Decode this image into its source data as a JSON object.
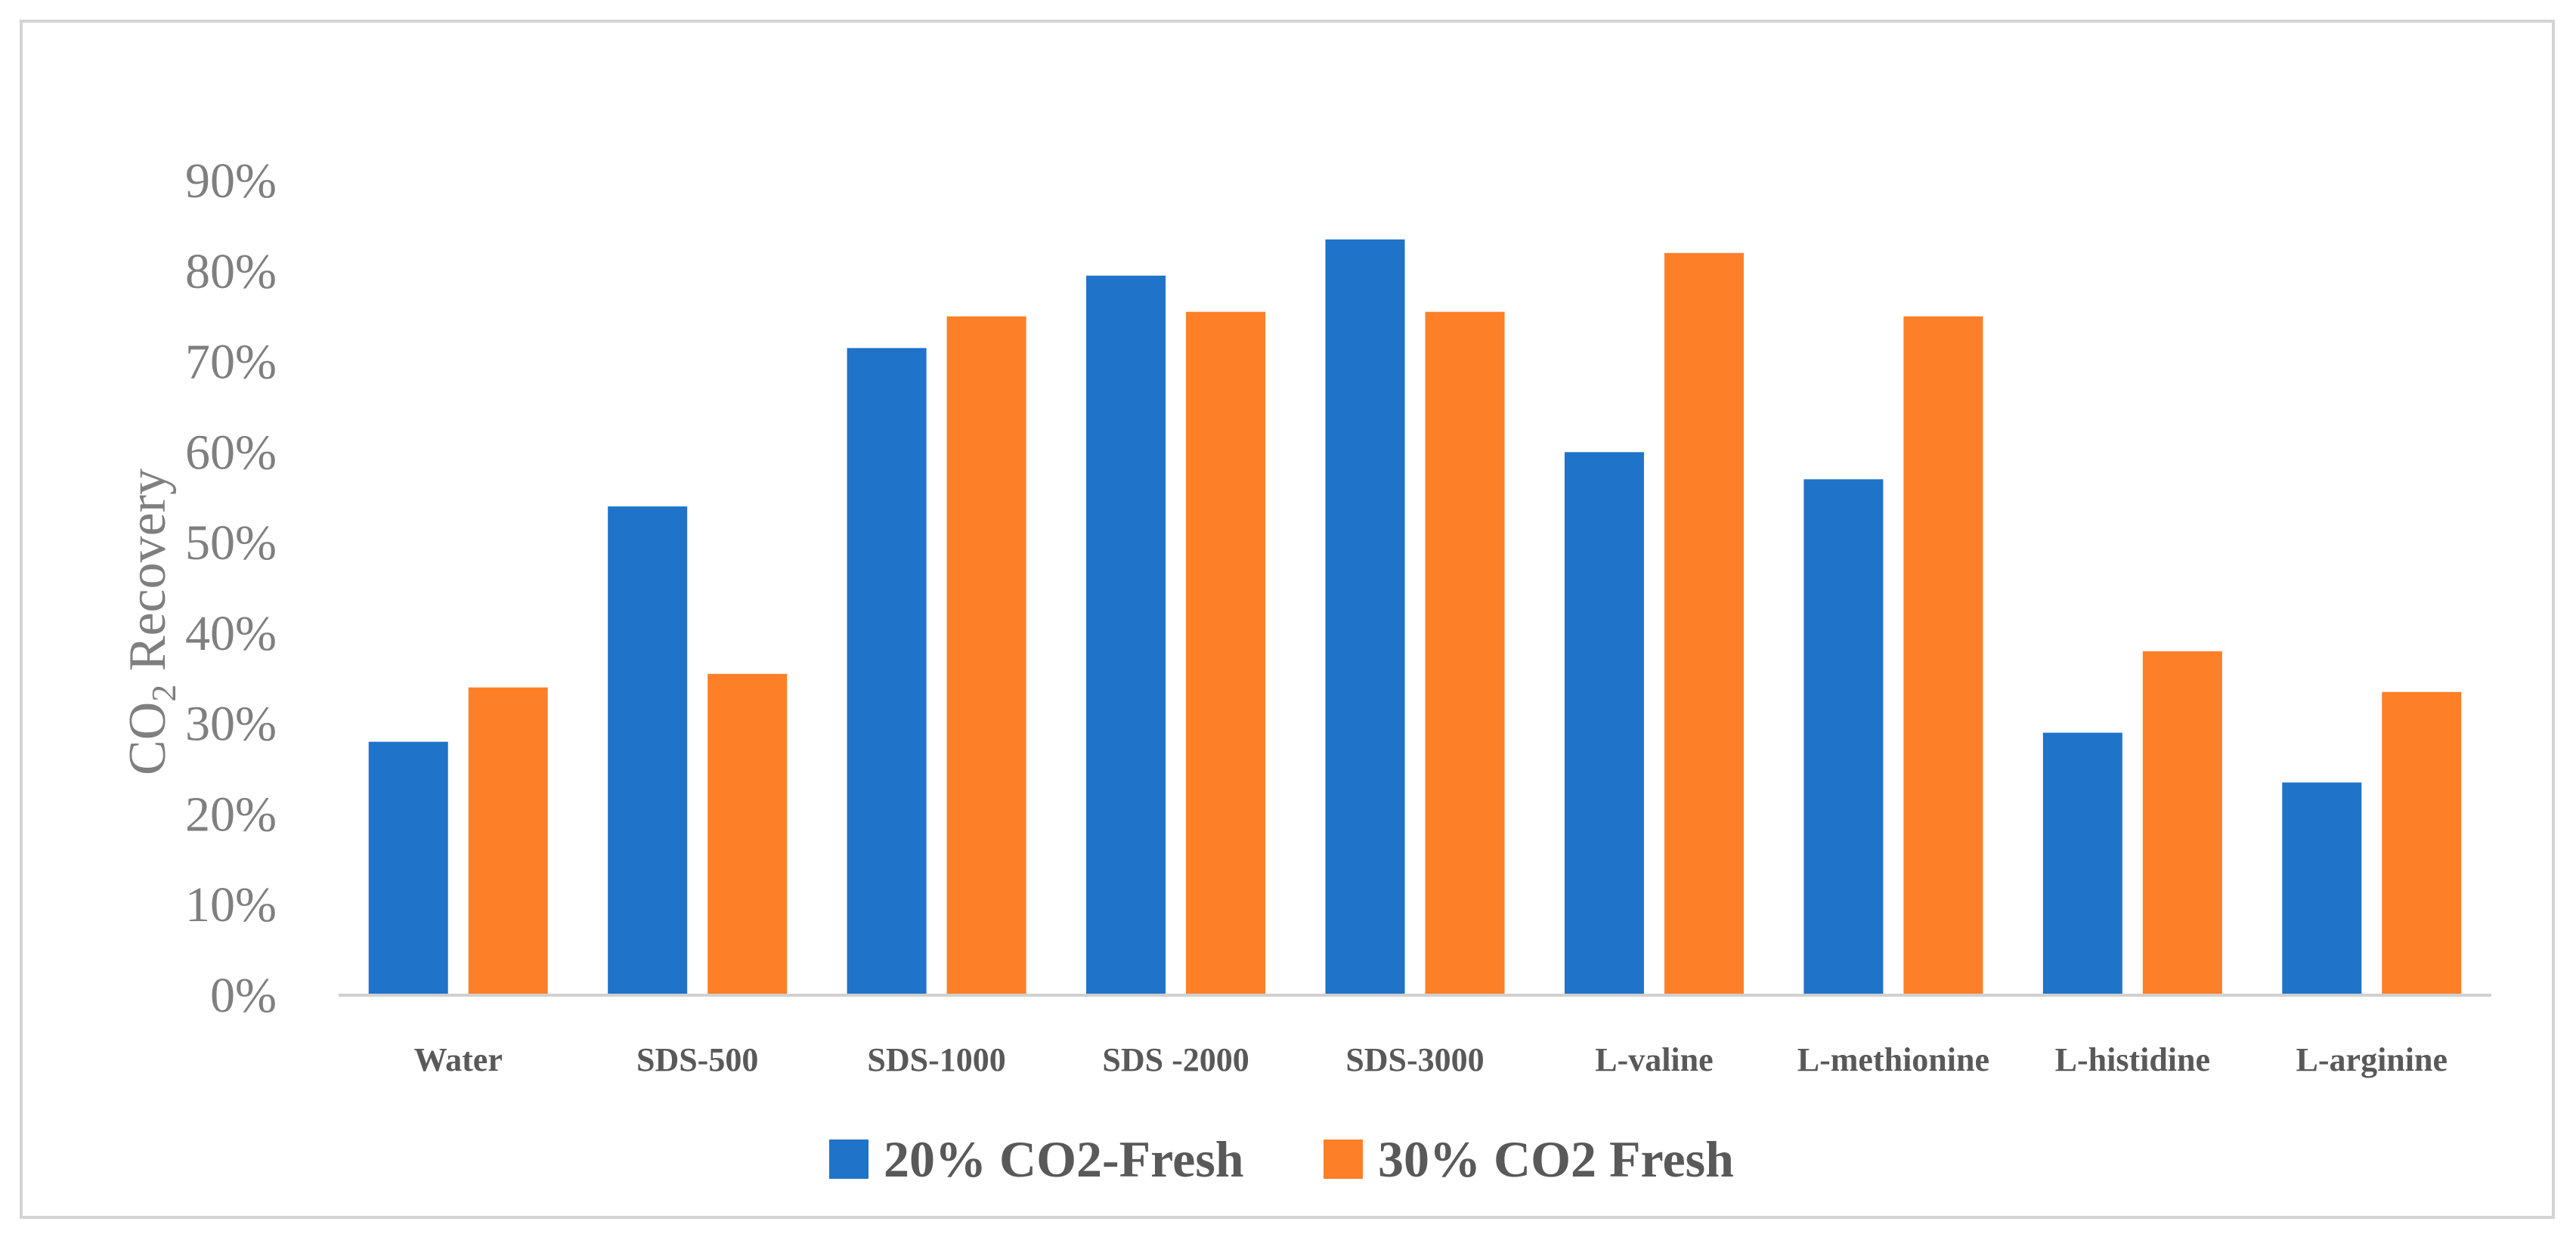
{
  "chart_data": {
    "type": "bar",
    "title": "",
    "xlabel": "",
    "ylabel_main": "CO",
    "ylabel_sub": "2",
    "ylabel_rest": " Recovery",
    "ylim": [
      0,
      0.9
    ],
    "yticks": [
      0,
      0.1,
      0.2,
      0.3,
      0.4,
      0.5,
      0.6,
      0.7,
      0.8,
      0.9
    ],
    "ytick_labels": [
      "0%",
      "10%",
      "20%",
      "30%",
      "40%",
      "50%",
      "60%",
      "70%",
      "80%",
      "90%"
    ],
    "categories": [
      "Water",
      "SDS-500",
      "SDS-1000",
      "SDS -2000",
      "SDS-3000",
      "L-valine",
      "L-methionine",
      "L-histidine",
      "L-arginine"
    ],
    "series": [
      {
        "name": "20% CO2-Fresh",
        "color": "#1f73c8",
        "values": [
          0.28,
          0.54,
          0.715,
          0.795,
          0.835,
          0.6,
          0.57,
          0.29,
          0.235
        ]
      },
      {
        "name": "30% CO2 Fresh",
        "color": "#fd7f27",
        "values": [
          0.34,
          0.355,
          0.75,
          0.755,
          0.755,
          0.82,
          0.75,
          0.38,
          0.335
        ]
      }
    ],
    "grid": false,
    "legend": "bottom-center"
  }
}
